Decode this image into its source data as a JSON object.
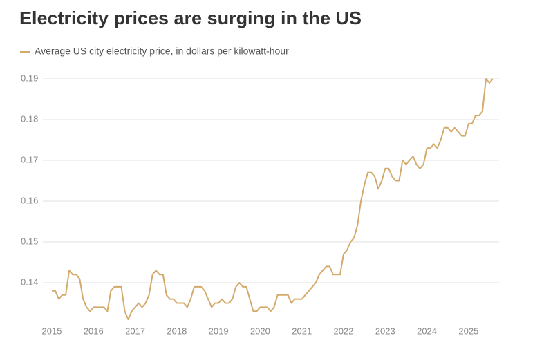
{
  "chart_data": {
    "type": "line",
    "title": "Electricity prices are surging in the US",
    "series": [
      {
        "name": "Average US city electricity price, in dollars per kilowatt-hour",
        "color": "#d3aa6b",
        "x": [
          2015,
          2015.083,
          2015.167,
          2015.25,
          2015.333,
          2015.417,
          2015.5,
          2015.583,
          2015.667,
          2015.75,
          2015.833,
          2015.917,
          2016,
          2016.083,
          2016.167,
          2016.25,
          2016.333,
          2016.417,
          2016.5,
          2016.583,
          2016.667,
          2016.75,
          2016.833,
          2016.917,
          2017,
          2017.083,
          2017.167,
          2017.25,
          2017.333,
          2017.417,
          2017.5,
          2017.583,
          2017.667,
          2017.75,
          2017.833,
          2017.917,
          2018,
          2018.083,
          2018.167,
          2018.25,
          2018.333,
          2018.417,
          2018.5,
          2018.583,
          2018.667,
          2018.75,
          2018.833,
          2018.917,
          2019,
          2019.083,
          2019.167,
          2019.25,
          2019.333,
          2019.417,
          2019.5,
          2019.583,
          2019.667,
          2019.75,
          2019.833,
          2019.917,
          2020,
          2020.083,
          2020.167,
          2020.25,
          2020.333,
          2020.417,
          2020.5,
          2020.583,
          2020.667,
          2020.75,
          2020.833,
          2020.917,
          2021,
          2021.083,
          2021.167,
          2021.25,
          2021.333,
          2021.417,
          2021.5,
          2021.583,
          2021.667,
          2021.75,
          2021.833,
          2021.917,
          2022,
          2022.083,
          2022.167,
          2022.25,
          2022.333,
          2022.417,
          2022.5,
          2022.583,
          2022.667,
          2022.75,
          2022.833,
          2022.917,
          2023,
          2023.083,
          2023.167,
          2023.25,
          2023.333,
          2023.417,
          2023.5,
          2023.583,
          2023.667,
          2023.75,
          2023.833,
          2023.917,
          2024,
          2024.083,
          2024.167,
          2024.25,
          2024.333,
          2024.417,
          2024.5,
          2024.583,
          2024.667,
          2024.75,
          2024.833,
          2024.917,
          2025,
          2025.083,
          2025.167,
          2025.25,
          2025.333,
          2025.417,
          2025.5,
          2025.583
        ],
        "values": [
          0.138,
          0.138,
          0.136,
          0.137,
          0.137,
          0.143,
          0.142,
          0.142,
          0.141,
          0.136,
          0.134,
          0.133,
          0.134,
          0.134,
          0.134,
          0.134,
          0.133,
          0.138,
          0.139,
          0.139,
          0.139,
          0.133,
          0.131,
          0.133,
          0.134,
          0.135,
          0.134,
          0.135,
          0.137,
          0.142,
          0.143,
          0.142,
          0.142,
          0.137,
          0.136,
          0.136,
          0.135,
          0.135,
          0.135,
          0.134,
          0.136,
          0.139,
          0.139,
          0.139,
          0.138,
          0.136,
          0.134,
          0.135,
          0.135,
          0.136,
          0.135,
          0.135,
          0.136,
          0.139,
          0.14,
          0.139,
          0.139,
          0.136,
          0.133,
          0.133,
          0.134,
          0.134,
          0.134,
          0.133,
          0.134,
          0.137,
          0.137,
          0.137,
          0.137,
          0.135,
          0.136,
          0.136,
          0.136,
          0.137,
          0.138,
          0.139,
          0.14,
          0.142,
          0.143,
          0.144,
          0.144,
          0.142,
          0.142,
          0.142,
          0.147,
          0.148,
          0.15,
          0.151,
          0.154,
          0.16,
          0.164,
          0.167,
          0.167,
          0.166,
          0.163,
          0.165,
          0.168,
          0.168,
          0.166,
          0.165,
          0.165,
          0.17,
          0.169,
          0.17,
          0.171,
          0.169,
          0.168,
          0.169,
          0.173,
          0.173,
          0.174,
          0.173,
          0.175,
          0.178,
          0.178,
          0.177,
          0.178,
          0.177,
          0.176,
          0.176,
          0.179,
          0.179,
          0.181,
          0.181,
          0.182,
          0.19,
          0.189,
          0.19
        ]
      }
    ],
    "xlim": [
      2015,
      2025.583
    ],
    "xticks": [
      2015,
      2016,
      2017,
      2018,
      2019,
      2020,
      2021,
      2022,
      2023,
      2024,
      2025
    ],
    "ylim": [
      0.13,
      0.19
    ],
    "yticks": [
      0.14,
      0.15,
      0.16,
      0.17,
      0.18,
      0.19
    ],
    "grid": true
  }
}
